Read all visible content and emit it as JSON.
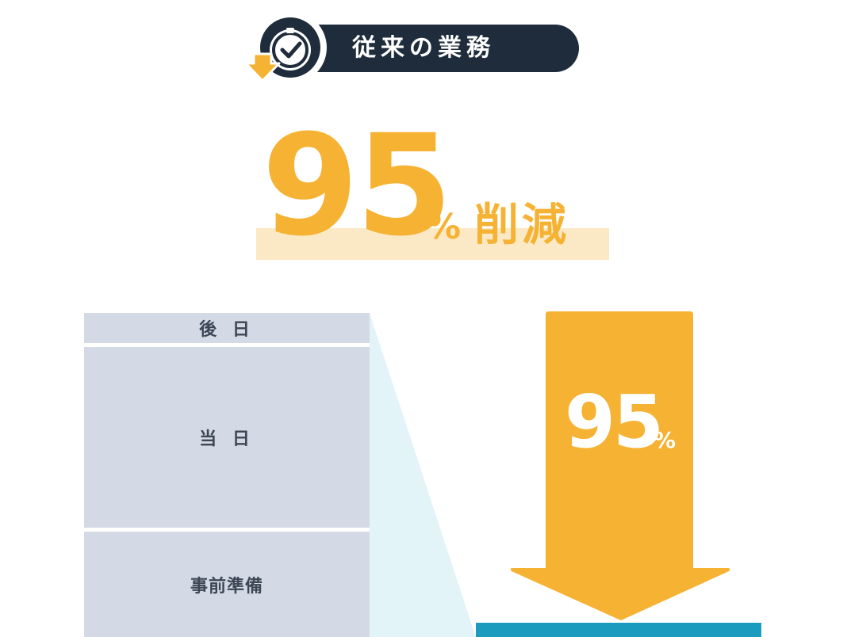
{
  "header": {
    "title": "従来の業務",
    "badge_icon": "clock-check-down-icon"
  },
  "headline": {
    "value": "95",
    "percent": "%",
    "word": "削減"
  },
  "column": {
    "blocks": [
      {
        "label": "後 日"
      },
      {
        "label": "当 日"
      },
      {
        "label": "事前準備"
      }
    ]
  },
  "arrow": {
    "value": "95",
    "percent": "%",
    "icon": "down-arrow-icon"
  },
  "colors": {
    "navy": "#1e2c3b",
    "accent": "#f6b233",
    "highlight": "#fbe9c6",
    "block": "#d3d9e5",
    "funnel": "#e3f4f8",
    "teal": "#1b9cbf"
  }
}
